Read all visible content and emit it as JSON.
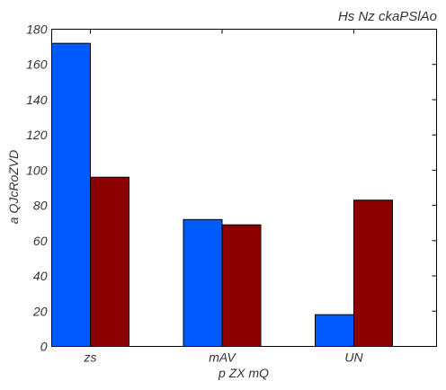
{
  "chart_data": {
    "type": "bar",
    "title": "Hs Nz ckaPSlAo",
    "xlabel": "p ZX  mQ",
    "ylabel": "a QJcRoZVD",
    "categories": [
      "zs",
      "mAV",
      "UN"
    ],
    "series": [
      {
        "values": [
          172,
          72,
          18
        ],
        "color": "#005bff"
      },
      {
        "values": [
          96,
          69,
          83
        ],
        "color": "#8b0000"
      }
    ],
    "ylim": [
      0,
      180
    ],
    "yticks": [
      0,
      20,
      40,
      60,
      80,
      100,
      120,
      140,
      160,
      180
    ],
    "grid": false,
    "legend": "none"
  }
}
